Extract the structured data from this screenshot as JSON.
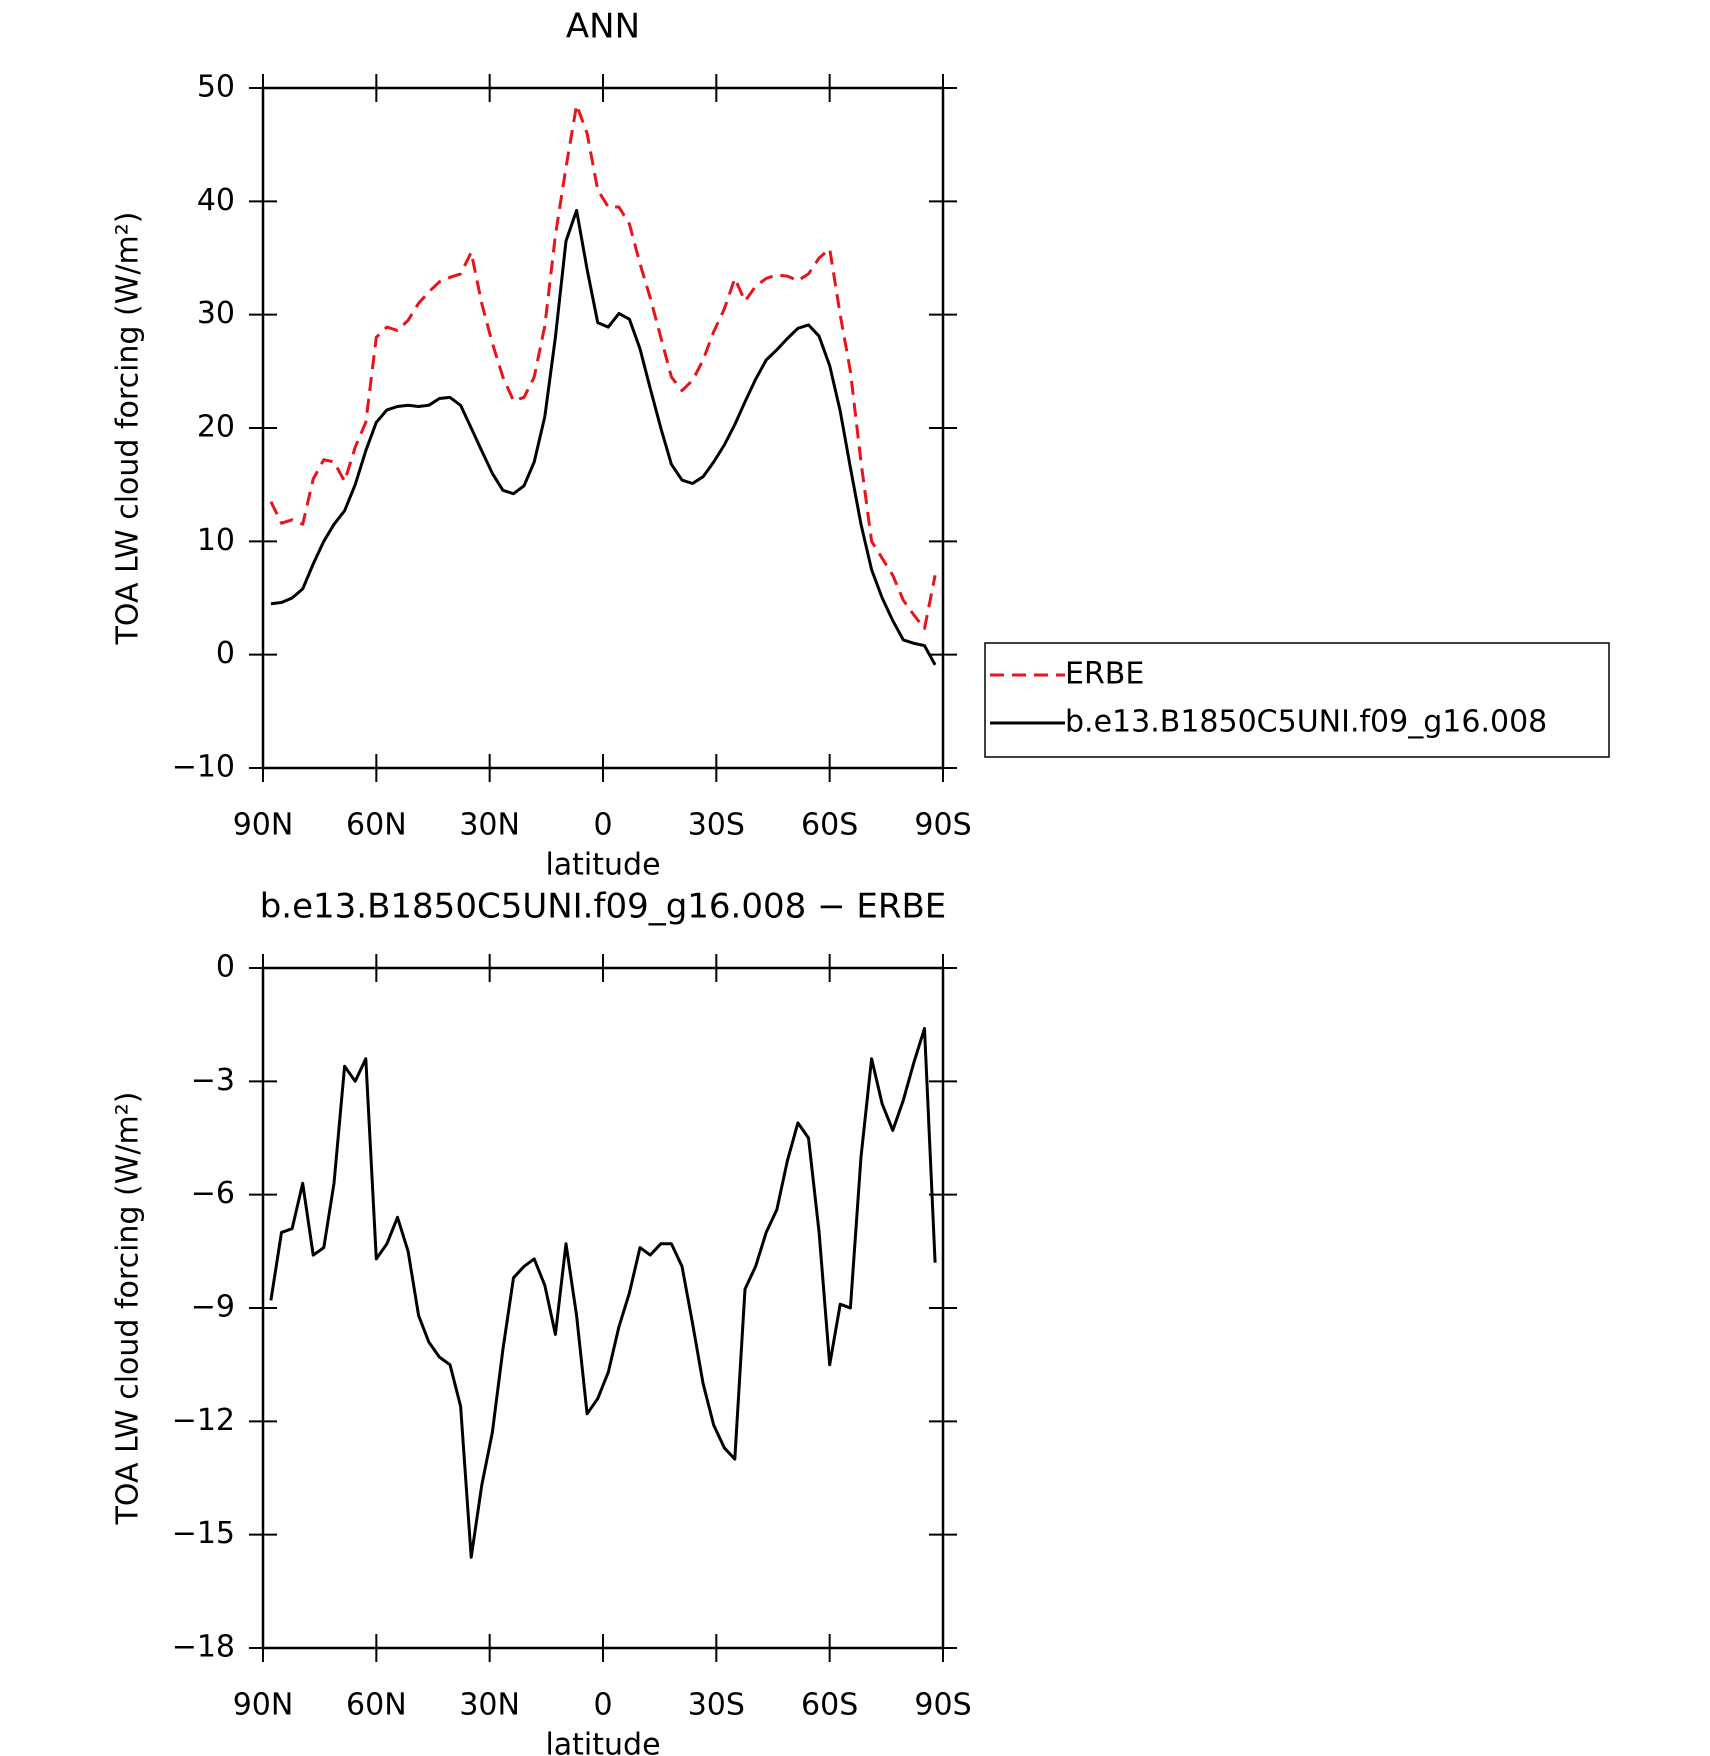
{
  "chart_data": [
    {
      "type": "line",
      "title": "ANN",
      "xlabel": "latitude",
      "ylabel": "TOA LW cloud forcing (W/m²)",
      "x": [
        87.9,
        85.1,
        82.3,
        79.5,
        76.7,
        73.9,
        71.2,
        68.4,
        65.6,
        62.8,
        60.0,
        57.2,
        54.4,
        51.6,
        48.8,
        46.1,
        43.3,
        40.5,
        37.7,
        34.9,
        32.1,
        29.3,
        26.5,
        23.7,
        20.9,
        18.2,
        15.4,
        12.6,
        9.8,
        7.0,
        4.2,
        1.4,
        -1.4,
        -4.2,
        -7.0,
        -9.8,
        -12.5,
        -15.3,
        -18.1,
        -20.9,
        -23.7,
        -26.5,
        -29.3,
        -32.1,
        -34.9,
        -37.6,
        -40.4,
        -43.2,
        -46.0,
        -48.8,
        -51.6,
        -54.4,
        -57.2,
        -60.0,
        -62.8,
        -65.5,
        -68.3,
        -71.1,
        -73.9,
        -76.7,
        -79.5,
        -82.3,
        -85.1,
        -87.9
      ],
      "series": [
        {
          "name": "ERBE",
          "color": "#e8141a",
          "linestyle": "dashed",
          "values": [
            13.5,
            11.6,
            11.9,
            11.5,
            15.5,
            17.2,
            17.0,
            15.3,
            18.3,
            20.5,
            28.0,
            28.9,
            28.6,
            29.5,
            31.0,
            32.0,
            32.9,
            33.3,
            33.6,
            35.5,
            31.0,
            27.5,
            24.5,
            22.4,
            22.7,
            24.5,
            29.0,
            37.0,
            43.0,
            48.5,
            46.0,
            41.0,
            39.5,
            39.5,
            38.0,
            34.5,
            31.5,
            28.0,
            24.5,
            23.3,
            24.2,
            26.0,
            28.5,
            30.5,
            33.2,
            31.2,
            32.5,
            33.2,
            33.5,
            33.4,
            33.0,
            33.6,
            35.0,
            35.8,
            30.0,
            25.0,
            17.0,
            10.0,
            8.5,
            7.0,
            4.8,
            3.5,
            2.3,
            7.0
          ]
        },
        {
          "name": "b.e13.B1850C5UNI.f09_g16.008",
          "color": "#000000",
          "linestyle": "solid",
          "values": [
            4.5,
            4.6,
            5.0,
            5.8,
            8.0,
            10.0,
            11.5,
            12.7,
            15.0,
            18.0,
            20.5,
            21.6,
            21.9,
            22.0,
            21.9,
            22.0,
            22.6,
            22.7,
            22.0,
            20.0,
            18.0,
            16.0,
            14.5,
            14.2,
            14.9,
            17.0,
            21.0,
            28.0,
            36.5,
            39.2,
            34.0,
            29.3,
            28.9,
            30.1,
            29.6,
            27.0,
            23.5,
            20.0,
            16.8,
            15.4,
            15.1,
            15.7,
            17.0,
            18.5,
            20.3,
            22.3,
            24.3,
            26.0,
            26.9,
            27.9,
            28.8,
            29.1,
            28.1,
            25.5,
            21.5,
            16.5,
            11.5,
            7.5,
            5.0,
            3.0,
            1.3,
            1.0,
            0.8,
            -0.9
          ]
        }
      ],
      "xlim": [
        90,
        -90
      ],
      "xticks": [
        {
          "value": 90,
          "label": "90N"
        },
        {
          "value": 60,
          "label": "60N"
        },
        {
          "value": 30,
          "label": "30N"
        },
        0,
        {
          "value": -30,
          "label": "30S"
        },
        {
          "value": -60,
          "label": "60S"
        },
        {
          "value": -90,
          "label": "90S"
        }
      ],
      "ylim": [
        -10,
        50
      ],
      "yticks": [
        {
          "value": -10,
          "label": "−10"
        },
        0,
        10,
        20,
        30,
        40,
        50
      ],
      "legend": "right"
    },
    {
      "type": "line",
      "title": "b.e13.B1850C5UNI.f09_g16.008 − ERBE",
      "xlabel": "latitude",
      "ylabel": "TOA LW cloud forcing (W/m²)",
      "x": [
        87.9,
        85.1,
        82.3,
        79.5,
        76.7,
        73.9,
        71.2,
        68.4,
        65.6,
        62.8,
        60.0,
        57.2,
        54.4,
        51.6,
        48.8,
        46.1,
        43.3,
        40.5,
        37.7,
        34.9,
        32.1,
        29.3,
        26.5,
        23.7,
        20.9,
        18.2,
        15.4,
        12.6,
        9.8,
        7.0,
        4.2,
        1.4,
        -1.4,
        -4.2,
        -7.0,
        -9.8,
        -12.5,
        -15.3,
        -18.1,
        -20.9,
        -23.7,
        -26.5,
        -29.3,
        -32.1,
        -34.9,
        -37.6,
        -40.4,
        -43.2,
        -46.0,
        -48.8,
        -51.6,
        -54.4,
        -57.2,
        -60.0,
        -62.8,
        -65.5,
        -68.3,
        -71.1,
        -73.9,
        -76.7,
        -79.5,
        -82.3,
        -85.1,
        -87.9
      ],
      "series": [
        {
          "color": "#000000",
          "linestyle": "solid",
          "values": [
            -8.8,
            -7.0,
            -6.9,
            -5.7,
            -7.6,
            -7.4,
            -5.7,
            -2.6,
            -3.0,
            -2.4,
            -7.7,
            -7.3,
            -6.6,
            -7.5,
            -9.2,
            -9.9,
            -10.3,
            -10.5,
            -11.6,
            -15.6,
            -13.7,
            -12.3,
            -10.1,
            -8.2,
            -7.9,
            -7.7,
            -8.4,
            -9.7,
            -7.3,
            -9.2,
            -11.8,
            -11.4,
            -10.7,
            -9.5,
            -8.6,
            -7.4,
            -7.6,
            -7.3,
            -7.3,
            -7.9,
            -9.4,
            -11.0,
            -12.1,
            -12.7,
            -13.0,
            -8.5,
            -7.9,
            -7.0,
            -6.4,
            -5.1,
            -4.1,
            -4.5,
            -7.0,
            -10.5,
            -8.9,
            -9.0,
            -5.0,
            -2.4,
            -3.6,
            -4.3,
            -3.5,
            -2.5,
            -1.6,
            -7.8
          ]
        }
      ],
      "xlim": [
        90,
        -90
      ],
      "xticks": [
        {
          "value": 90,
          "label": "90N"
        },
        {
          "value": 60,
          "label": "60N"
        },
        {
          "value": 30,
          "label": "30N"
        },
        0,
        {
          "value": -30,
          "label": "30S"
        },
        {
          "value": -60,
          "label": "60S"
        },
        {
          "value": -90,
          "label": "90S"
        }
      ],
      "ylim": [
        -18,
        0
      ],
      "yticks": [
        {
          "value": -18,
          "label": "−18"
        },
        {
          "value": -15,
          "label": "−15"
        },
        {
          "value": -12,
          "label": "−12"
        },
        {
          "value": -9,
          "label": "−9"
        },
        {
          "value": -6,
          "label": "−6"
        },
        {
          "value": -3,
          "label": "−3"
        },
        0
      ]
    }
  ]
}
